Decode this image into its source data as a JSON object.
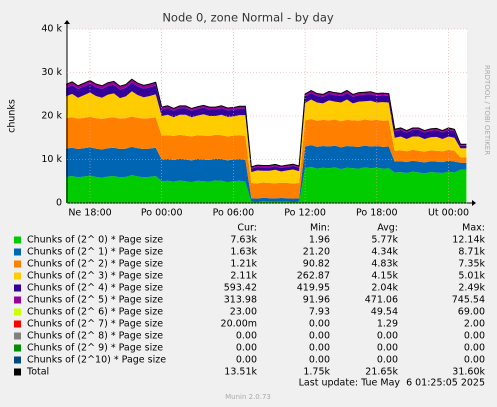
{
  "chart_data": {
    "type": "stacked_area",
    "title": "Node 0, zone Normal - by day",
    "y_label": "chunks",
    "side_text": "RRDTOOL / TOBI OETIKER",
    "ylim": [
      0,
      40000
    ],
    "yticks": [
      0,
      {
        "value": 10000,
        "label": "10 k"
      },
      {
        "value": 20000,
        "label": "20 k"
      },
      {
        "value": 30000,
        "label": "30 k"
      },
      {
        "value": 40000,
        "label": "40 k"
      }
    ],
    "grid": true,
    "categories": [
      null,
      null,
      null,
      null,
      "Ne 18:00",
      null,
      null,
      null,
      null,
      null,
      null,
      null,
      null,
      null,
      null,
      null,
      "Po 00:00",
      null,
      null,
      null,
      null,
      null,
      null,
      null,
      null,
      null,
      null,
      null,
      "Po 06:00",
      null,
      null,
      null,
      null,
      null,
      null,
      null,
      null,
      null,
      null,
      null,
      "Po 12:00",
      null,
      null,
      null,
      null,
      null,
      null,
      null,
      null,
      null,
      null,
      null,
      "Po 18:00",
      null,
      null,
      null,
      null,
      null,
      null,
      null,
      null,
      null,
      null,
      null,
      "Ut 00:00",
      null,
      null,
      null
    ],
    "stat_headers": [
      "Cur:",
      "Min:",
      "Avg:",
      "Max:"
    ],
    "series": [
      {
        "name": "Chunks of (2^ 0) * Page size",
        "color": "#00cc00",
        "stats": [
          "7.63k",
          "1.96",
          "5.77k",
          "12.14k"
        ],
        "values": [
          6000,
          6200,
          5900,
          6100,
          6300,
          6000,
          5800,
          6100,
          6200,
          5900,
          6000,
          6400,
          6100,
          5900,
          6000,
          6200,
          5000,
          5100,
          4900,
          5200,
          5000,
          4800,
          5100,
          5000,
          4900,
          5200,
          5100,
          4800,
          5000,
          5100,
          4900,
          300,
          200,
          400,
          300,
          250,
          350,
          300,
          200,
          300,
          8000,
          8300,
          7900,
          8100,
          8000,
          8200,
          7800,
          8100,
          8000,
          7900,
          8200,
          8000,
          8100,
          7900,
          8000,
          7000,
          7100,
          6900,
          7200,
          7000,
          6800,
          7100,
          7000,
          6900,
          7200,
          7000,
          7630,
          7630
        ]
      },
      {
        "name": "Chunks of (2^ 1) * Page size",
        "color": "#0066b3",
        "stats": [
          "1.63k",
          "21.20",
          "4.34k",
          "8.71k"
        ],
        "values": [
          6500,
          6500,
          6500,
          6500,
          6500,
          6500,
          6500,
          6500,
          6500,
          6500,
          6500,
          6500,
          6500,
          6500,
          6500,
          6500,
          5000,
          5000,
          5000,
          5000,
          5000,
          5000,
          5000,
          5000,
          5000,
          5000,
          5000,
          5000,
          5000,
          5000,
          5000,
          800,
          800,
          800,
          800,
          800,
          800,
          800,
          800,
          800,
          5000,
          5000,
          5000,
          5000,
          5000,
          5000,
          5000,
          5000,
          5000,
          5000,
          5000,
          5000,
          5000,
          5000,
          5000,
          2500,
          2500,
          2500,
          2500,
          2500,
          2500,
          2500,
          2500,
          2500,
          2500,
          2500,
          1630,
          1630
        ]
      },
      {
        "name": "Chunks of (2^ 2) * Page size",
        "color": "#ff8000",
        "stats": [
          "1.21k",
          "90.82",
          "4.83k",
          "7.35k"
        ],
        "values": [
          7000,
          7000,
          7000,
          7000,
          7000,
          7000,
          7000,
          7000,
          7000,
          7000,
          7000,
          7000,
          7000,
          7000,
          7000,
          7000,
          5500,
          5500,
          5500,
          5500,
          5500,
          5500,
          5500,
          5500,
          5500,
          5500,
          5500,
          5500,
          5500,
          5500,
          5500,
          3500,
          3500,
          3500,
          3500,
          3500,
          3500,
          3500,
          3500,
          3500,
          6000,
          6000,
          6000,
          6000,
          6000,
          6000,
          6000,
          6000,
          6000,
          6000,
          6000,
          6000,
          6000,
          6000,
          6000,
          2500,
          2500,
          2500,
          2500,
          2500,
          2500,
          2500,
          2500,
          2500,
          2500,
          2500,
          1210,
          1210
        ]
      },
      {
        "name": "Chunks of (2^ 3) * Page size",
        "color": "#ffcc00",
        "stats": [
          "2.11k",
          "262.87",
          "4.15k",
          "5.01k"
        ],
        "values": [
          5000,
          5400,
          4800,
          5200,
          5600,
          5100,
          4900,
          5300,
          5500,
          4700,
          5000,
          5800,
          5200,
          4900,
          5100,
          5300,
          4500,
          4700,
          4300,
          4600,
          4800,
          4400,
          4500,
          4900,
          4600,
          4300,
          4700,
          4500,
          4400,
          4600,
          4800,
          2500,
          3000,
          2700,
          2800,
          3100,
          2600,
          2900,
          3200,
          2700,
          4000,
          4500,
          4200,
          3800,
          4600,
          4100,
          4300,
          4700,
          3900,
          4400,
          4200,
          4500,
          4000,
          4300,
          4100,
          3000,
          3200,
          2800,
          3100,
          3300,
          2900,
          3000,
          3200,
          2800,
          3100,
          3000,
          2110,
          2110
        ]
      },
      {
        "name": "Chunks of (2^ 4) * Page size",
        "color": "#330099",
        "stats": [
          "593.42",
          "419.95",
          "2.04k",
          "2.49k"
        ],
        "values": [
          2000,
          2000,
          2000,
          2000,
          2000,
          2000,
          2000,
          2000,
          2000,
          2000,
          2000,
          2000,
          2000,
          2000,
          2000,
          2000,
          1500,
          1500,
          1500,
          1500,
          1500,
          1500,
          1500,
          1500,
          1500,
          1500,
          1500,
          1500,
          1500,
          1500,
          1500,
          800,
          800,
          800,
          800,
          800,
          800,
          800,
          800,
          800,
          1500,
          1500,
          1500,
          1500,
          1500,
          1500,
          1500,
          1500,
          1500,
          1500,
          1500,
          1500,
          1500,
          1500,
          1500,
          1500,
          1500,
          1500,
          1500,
          1500,
          1500,
          1500,
          1500,
          1500,
          1500,
          1500,
          593.42,
          593.42
        ]
      },
      {
        "name": "Chunks of (2^ 5) * Page size",
        "color": "#990099",
        "stats": [
          "313.98",
          "91.96",
          "471.06",
          "745.54"
        ],
        "values": [
          700,
          700,
          700,
          700,
          700,
          700,
          700,
          700,
          700,
          700,
          700,
          700,
          700,
          700,
          700,
          700,
          500,
          500,
          500,
          500,
          500,
          500,
          500,
          500,
          500,
          500,
          500,
          500,
          500,
          500,
          500,
          400,
          400,
          400,
          400,
          400,
          400,
          400,
          400,
          400,
          500,
          500,
          500,
          500,
          500,
          500,
          500,
          500,
          500,
          500,
          500,
          500,
          500,
          500,
          500,
          400,
          400,
          400,
          400,
          400,
          400,
          400,
          400,
          400,
          400,
          400,
          313.98,
          313.98
        ]
      },
      {
        "name": "Chunks of (2^ 6) * Page size",
        "color": "#ccff00",
        "stats": [
          "23.00",
          "7.93",
          "49.54",
          "69.00"
        ],
        "values": [
          50,
          50,
          50,
          50,
          50,
          50,
          50,
          50,
          50,
          50,
          50,
          50,
          50,
          50,
          50,
          50,
          40,
          40,
          40,
          40,
          40,
          40,
          40,
          40,
          40,
          40,
          40,
          40,
          40,
          40,
          40,
          20,
          20,
          20,
          20,
          20,
          20,
          20,
          20,
          20,
          60,
          60,
          60,
          60,
          60,
          60,
          60,
          60,
          60,
          60,
          60,
          60,
          60,
          60,
          60,
          50,
          50,
          50,
          50,
          50,
          50,
          50,
          50,
          50,
          50,
          50,
          23,
          23
        ]
      },
      {
        "name": "Chunks of (2^ 7) * Page size",
        "color": "#ff0000",
        "stats": [
          "20.00m",
          "0.00",
          "1.29",
          "2.00"
        ],
        "values": [
          0,
          0,
          0,
          0,
          0,
          0,
          0,
          0,
          0,
          0,
          0,
          0,
          0,
          0,
          0,
          0,
          0,
          0,
          0,
          0,
          0,
          0,
          0,
          0,
          0,
          0,
          0,
          0,
          0,
          0,
          0,
          0,
          0,
          0,
          0,
          0,
          0,
          0,
          0,
          0,
          0,
          0,
          0,
          0,
          0,
          0,
          0,
          0,
          0,
          0,
          0,
          0,
          0,
          0,
          0,
          0,
          0,
          0,
          0,
          0,
          0,
          0,
          0,
          0,
          0,
          0,
          0.02,
          0.02
        ]
      },
      {
        "name": "Chunks of (2^ 8) * Page size",
        "color": "#808080",
        "stats": [
          "0.00",
          "0.00",
          "0.00",
          "0.00"
        ],
        "values": [
          0,
          0,
          0,
          0,
          0,
          0,
          0,
          0,
          0,
          0,
          0,
          0,
          0,
          0,
          0,
          0,
          0,
          0,
          0,
          0,
          0,
          0,
          0,
          0,
          0,
          0,
          0,
          0,
          0,
          0,
          0,
          0,
          0,
          0,
          0,
          0,
          0,
          0,
          0,
          0,
          0,
          0,
          0,
          0,
          0,
          0,
          0,
          0,
          0,
          0,
          0,
          0,
          0,
          0,
          0,
          0,
          0,
          0,
          0,
          0,
          0,
          0,
          0,
          0,
          0,
          0,
          0,
          0
        ]
      },
      {
        "name": "Chunks of (2^ 9) * Page size",
        "color": "#008f00",
        "stats": [
          "0.00",
          "0.00",
          "0.00",
          "0.00"
        ],
        "values": [
          0,
          0,
          0,
          0,
          0,
          0,
          0,
          0,
          0,
          0,
          0,
          0,
          0,
          0,
          0,
          0,
          0,
          0,
          0,
          0,
          0,
          0,
          0,
          0,
          0,
          0,
          0,
          0,
          0,
          0,
          0,
          0,
          0,
          0,
          0,
          0,
          0,
          0,
          0,
          0,
          0,
          0,
          0,
          0,
          0,
          0,
          0,
          0,
          0,
          0,
          0,
          0,
          0,
          0,
          0,
          0,
          0,
          0,
          0,
          0,
          0,
          0,
          0,
          0,
          0,
          0,
          0,
          0
        ]
      },
      {
        "name": "Chunks of (2^10) * Page size",
        "color": "#00487d",
        "stats": [
          "0.00",
          "0.00",
          "0.00",
          "0.00"
        ],
        "values": [
          0,
          0,
          0,
          0,
          0,
          0,
          0,
          0,
          0,
          0,
          0,
          0,
          0,
          0,
          0,
          0,
          0,
          0,
          0,
          0,
          0,
          0,
          0,
          0,
          0,
          0,
          0,
          0,
          0,
          0,
          0,
          0,
          0,
          0,
          0,
          0,
          0,
          0,
          0,
          0,
          0,
          0,
          0,
          0,
          0,
          0,
          0,
          0,
          0,
          0,
          0,
          0,
          0,
          0,
          0,
          0,
          0,
          0,
          0,
          0,
          0,
          0,
          0,
          0,
          0,
          0,
          0,
          0
        ]
      }
    ],
    "total": {
      "name": "Total",
      "color": "#000000",
      "stats": [
        "13.51k",
        "1.75k",
        "21.65k",
        "31.60k"
      ],
      "values": [
        27250,
        27850,
        26950,
        27550,
        28150,
        27350,
        26950,
        27650,
        27950,
        26850,
        27250,
        28450,
        27550,
        27050,
        27350,
        27750,
        22040,
        22340,
        21740,
        22340,
        22340,
        21740,
        22140,
        22440,
        22040,
        22040,
        22340,
        21840,
        21940,
        22240,
        22240,
        8320,
        8720,
        8620,
        8620,
        8870,
        8470,
        8720,
        8920,
        8520,
        25060,
        25860,
        25160,
        24960,
        25660,
        25360,
        25160,
        25860,
        24960,
        25360,
        25460,
        25560,
        25160,
        25260,
        25160,
        16950,
        17250,
        16650,
        17250,
        17250,
        16650,
        17050,
        17150,
        16650,
        17250,
        16950,
        13510.42,
        13510.42
      ]
    },
    "last_update": "Last update: Tue May  6 01:25:05 2025",
    "footer": "Munin 2.0.73"
  }
}
